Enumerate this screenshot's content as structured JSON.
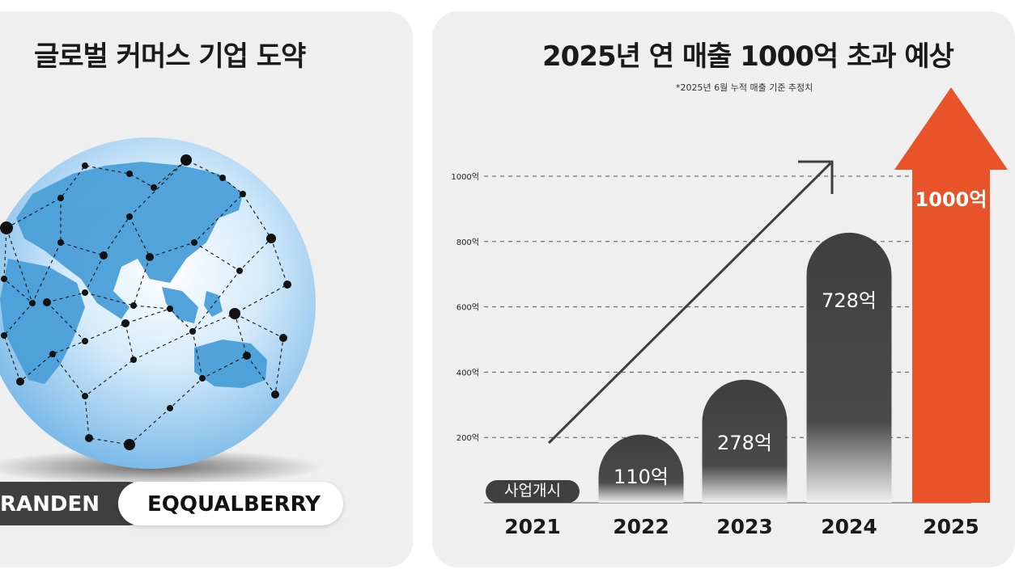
{
  "left_panel": {
    "title": "글로벌 커머스 기업 도약",
    "brands": [
      "RANDEN",
      "EQQUALBERRY"
    ],
    "globe_color": "#4a9fd8"
  },
  "right_panel": {
    "title": "2025년 연 매출 1000억 초과 예상",
    "note": "*2025년 6월 누적 매출 기준 추정치"
  },
  "chart_data": {
    "type": "bar",
    "title": "2025년 연 매출 1000억 초과 예상",
    "subtitle": "*2025년 6월 누적 매출 기준 추정치",
    "categories": [
      "2021",
      "2022",
      "2023",
      "2024",
      "2025"
    ],
    "values": [
      0,
      110,
      278,
      728,
      1000
    ],
    "data_labels": [
      "사업개시",
      "110억",
      "278억",
      "728억",
      "1000억"
    ],
    "y_ticks": [
      200,
      400,
      600,
      800,
      1000
    ],
    "y_tick_labels": [
      "200억",
      "400억",
      "600억",
      "800억",
      "1000억"
    ],
    "ylim": [
      0,
      1000
    ],
    "grid": true,
    "bar_color": "#3f3f3f",
    "highlight_color": "#e8532a"
  }
}
